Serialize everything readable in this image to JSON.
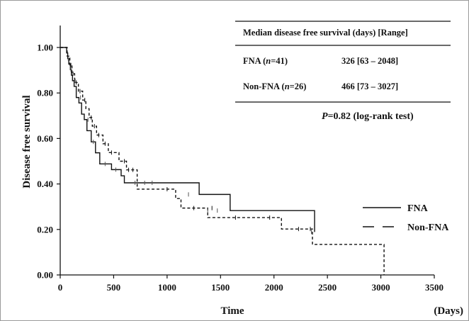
{
  "chart_data": {
    "type": "line",
    "subtype": "kaplan-meier-step",
    "xlabel": "Time",
    "xunit": "(Days)",
    "ylabel": "Disease free survival",
    "xlim": [
      0,
      3500
    ],
    "ylim": [
      0,
      1.0
    ],
    "x_ticks": [
      "0",
      "500",
      "1000",
      "1500",
      "2000",
      "2500",
      "3000",
      "3500"
    ],
    "y_ticks": [
      "0.00",
      "0.20",
      "0.40",
      "0.60",
      "0.80",
      "1.00"
    ],
    "grid": false,
    "legend_position": "right",
    "series": [
      {
        "name": "FNA",
        "style": "solid",
        "color": "#111111",
        "x": [
          0,
          60,
          70,
          80,
          95,
          105,
          115,
          130,
          150,
          175,
          200,
          225,
          250,
          290,
          330,
          370,
          480,
          570,
          600,
          970,
          1300,
          1590,
          2380
        ],
        "y": [
          1.0,
          0.976,
          0.951,
          0.927,
          0.902,
          0.878,
          0.854,
          0.829,
          0.78,
          0.756,
          0.707,
          0.683,
          0.634,
          0.585,
          0.537,
          0.488,
          0.463,
          0.436,
          0.405,
          0.405,
          0.354,
          0.283,
          0.189
        ]
      },
      {
        "name": "Non-FNA",
        "style": "dashed",
        "color": "#111111",
        "x": [
          0,
          65,
          90,
          110,
          135,
          170,
          210,
          240,
          270,
          300,
          340,
          400,
          450,
          550,
          620,
          720,
          1080,
          1130,
          1330,
          1380,
          2070,
          2360,
          3030
        ],
        "y": [
          1.0,
          0.962,
          0.923,
          0.885,
          0.846,
          0.808,
          0.769,
          0.731,
          0.692,
          0.654,
          0.615,
          0.577,
          0.538,
          0.5,
          0.462,
          0.377,
          0.336,
          0.294,
          0.294,
          0.252,
          0.202,
          0.134,
          0.0
        ]
      }
    ],
    "censor_marks": {
      "FNA": [
        [
          75,
          0.951
        ],
        [
          100,
          0.902
        ],
        [
          140,
          0.854
        ],
        [
          190,
          0.78
        ],
        [
          260,
          0.683
        ],
        [
          310,
          0.585
        ],
        [
          420,
          0.488
        ],
        [
          520,
          0.463
        ],
        [
          700,
          0.405
        ],
        [
          790,
          0.405
        ],
        [
          860,
          0.405
        ],
        [
          1200,
          0.354
        ],
        [
          1380,
          0.283
        ],
        [
          1470,
          0.283
        ],
        [
          2350,
          0.189
        ]
      ],
      "Non-FNA": [
        [
          100,
          0.923
        ],
        [
          120,
          0.885
        ],
        [
          150,
          0.846
        ],
        [
          185,
          0.808
        ],
        [
          230,
          0.769
        ],
        [
          290,
          0.692
        ],
        [
          320,
          0.654
        ],
        [
          360,
          0.615
        ],
        [
          420,
          0.577
        ],
        [
          480,
          0.538
        ],
        [
          600,
          0.5
        ],
        [
          640,
          0.462
        ],
        [
          680,
          0.462
        ],
        [
          1000,
          0.377
        ],
        [
          1250,
          0.294
        ],
        [
          1420,
          0.294
        ],
        [
          1640,
          0.252
        ],
        [
          1960,
          0.252
        ],
        [
          2230,
          0.202
        ],
        [
          2340,
          0.202
        ]
      ]
    },
    "table": {
      "title": "Median disease free survival (days) [Range]",
      "rows": [
        {
          "group": "FNA",
          "n_prefix": "(",
          "n_italic": "n",
          "n_suffix": "=41)",
          "value": "326 [63 – 2048]"
        },
        {
          "group": "Non-FNA",
          "n_prefix": "(",
          "n_italic": "n",
          "n_suffix": "=26)",
          "value": "466 [73 – 3027]"
        }
      ]
    },
    "annotation": {
      "p_italic": "P",
      "p_text": "=0.82  (log-rank test)"
    }
  }
}
